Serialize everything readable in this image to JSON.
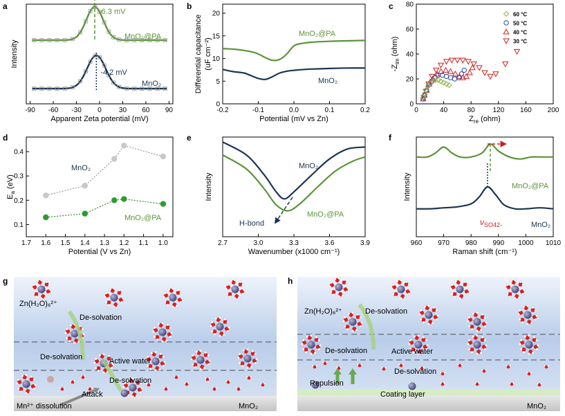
{
  "colors": {
    "green": "#5b9437",
    "navy": "#1b3553",
    "gray": "#9a9a9a",
    "dkgreen": "#2e8b2e",
    "red": "#d11f1f",
    "bluebg": "#c6d6ee",
    "axis": "#000000"
  },
  "chart_data": [
    {
      "panel": "a",
      "type": "line",
      "xlabel": "Apparent Zeta potential (mV)",
      "ylabel": "Intensity",
      "xlim": [
        -95,
        95
      ],
      "xticks": [
        -90,
        -60,
        -30,
        0,
        30,
        60,
        90
      ],
      "series": [
        {
          "name": "MnO2@PA",
          "peak": -6.3,
          "peak_label": "-6.3 mV",
          "points_x": [
            -85,
            -75,
            -65,
            -55,
            -45,
            -35,
            -25,
            -18,
            -12,
            -6,
            0,
            6,
            12,
            18,
            25,
            35,
            45,
            55,
            65,
            75,
            85
          ]
        },
        {
          "name": "MnO2",
          "peak": -4.2,
          "peak_label": "-4.2 mV",
          "points_x": [
            -85,
            -75,
            -65,
            -55,
            -45,
            -35,
            -25,
            -18,
            -12,
            -6,
            0,
            6,
            12,
            18,
            25,
            35,
            45,
            55,
            65,
            75,
            85
          ]
        }
      ],
      "labels": {
        "a": "MnO₂@PA",
        "b": "MnO₂"
      }
    },
    {
      "panel": "b",
      "type": "line",
      "xlabel": "Potential (mV vs Zn)",
      "ylabel": "Differential capacitance",
      "ylabel2": "(uF cm⁻²)",
      "xlim": [
        -0.2,
        0.2
      ],
      "ylim": [
        0,
        22
      ],
      "xticks": [
        "-0.2",
        "-0.1",
        "0.0",
        "0.1",
        "0.2"
      ],
      "yticks": [
        0,
        5,
        10,
        15,
        20
      ],
      "series": [
        {
          "name": "MnO2@PA",
          "x": [
            -0.2,
            -0.16,
            -0.12,
            -0.1,
            -0.08,
            -0.06,
            -0.04,
            -0.02,
            0,
            0.02,
            0.05,
            0.1,
            0.15,
            0.2
          ],
          "y": [
            12.2,
            12.0,
            11.5,
            11.0,
            10.2,
            9.6,
            9.8,
            11.0,
            12.8,
            13.3,
            13.6,
            13.8,
            13.9,
            14.0
          ]
        },
        {
          "name": "MnO2",
          "x": [
            -0.2,
            -0.17,
            -0.14,
            -0.12,
            -0.1,
            -0.08,
            -0.06,
            -0.04,
            -0.02,
            0,
            0.03,
            0.06,
            0.1,
            0.15,
            0.2
          ],
          "y": [
            7.6,
            7.1,
            6.8,
            6.2,
            5.6,
            5.4,
            6.0,
            6.8,
            7.2,
            7.4,
            7.6,
            7.7,
            7.8,
            7.9,
            7.9
          ]
        }
      ],
      "labels": {
        "a": "MnO₂@PA",
        "b": "MnO₂"
      }
    },
    {
      "panel": "c",
      "type": "scatter",
      "xlabel": "Z",
      "xlabel_sub": "re",
      "xlabel_unit": " (ohm)",
      "ylabel": "-Z",
      "ylabel_sub": "im",
      "ylabel_unit": " (ohm)",
      "xlim": [
        0,
        200
      ],
      "ylim": [
        0,
        80
      ],
      "xticks": [
        0,
        40,
        80,
        120,
        160,
        200
      ],
      "yticks": [
        0,
        20,
        40,
        60,
        80
      ],
      "legend": [
        "60 °C",
        "50 °C",
        "40 °C",
        "30 °C"
      ],
      "series": [
        {
          "name": "60 °C",
          "x": [
            10,
            12,
            14,
            17,
            20,
            24,
            28,
            32,
            36,
            40,
            44,
            48
          ],
          "y": [
            5,
            8,
            11,
            14,
            16,
            18,
            19,
            19,
            18,
            17,
            16,
            15
          ]
        },
        {
          "name": "50 °C",
          "x": [
            10,
            12,
            15,
            18,
            22,
            27,
            32,
            38,
            44,
            50,
            56,
            62,
            66,
            70
          ],
          "y": [
            4,
            7,
            11,
            15,
            18,
            21,
            23,
            23,
            22,
            21,
            20,
            21,
            24,
            27
          ]
        },
        {
          "name": "40 °C",
          "x": [
            10,
            12,
            15,
            19,
            24,
            30,
            36,
            43,
            50,
            57,
            63,
            68,
            73,
            78,
            82
          ],
          "y": [
            4,
            7,
            11,
            16,
            20,
            24,
            26,
            27,
            26,
            24,
            22,
            21,
            22,
            25,
            29
          ]
        },
        {
          "name": "30 °C",
          "x": [
            11,
            14,
            18,
            23,
            29,
            36,
            44,
            52,
            60,
            68,
            76,
            84,
            92,
            100,
            108,
            116,
            130,
            147
          ],
          "y": [
            5,
            10,
            16,
            22,
            27,
            31,
            34,
            35,
            35,
            35,
            34,
            32,
            29,
            25,
            22,
            24,
            32,
            42
          ]
        }
      ]
    },
    {
      "panel": "d",
      "type": "line",
      "xlabel": "Potential (V vs Zn)",
      "ylabel": "E",
      "ylabel_sub": "a",
      "ylabel_unit": " (eV)",
      "xlim": [
        1.7,
        0.95
      ],
      "ylim": [
        0.05,
        0.46
      ],
      "xticks": [
        "1.7",
        "1.6",
        "1.5",
        "1.4",
        "1.3",
        "1.2",
        "1.1",
        "1.0"
      ],
      "yticks": [
        "0.1",
        "0.2",
        "0.3",
        "0.4"
      ],
      "series": [
        {
          "name": "MnO2",
          "x": [
            1.6,
            1.4,
            1.25,
            1.2,
            1.0
          ],
          "y": [
            0.22,
            0.26,
            0.37,
            0.425,
            0.38
          ]
        },
        {
          "name": "MnO2@PA",
          "x": [
            1.6,
            1.4,
            1.25,
            1.2,
            1.0
          ],
          "y": [
            0.13,
            0.145,
            0.2,
            0.205,
            0.185
          ]
        }
      ],
      "labels": {
        "a": "MnO₂",
        "b": "MnO₂@PA"
      }
    },
    {
      "panel": "e",
      "type": "line",
      "xlabel": "Wavenumber (x1000 cm⁻¹)",
      "ylabel": "Intensity",
      "xlim": [
        2.7,
        3.9
      ],
      "xticks": [
        "2.7",
        "3.0",
        "3.3",
        "3.6",
        "3.9"
      ],
      "annotation": "H-bond",
      "labels": {
        "a": "MnO₂",
        "b": "MnO₂@PA"
      },
      "series": [
        {
          "name": "MnO2",
          "x": [
            2.7,
            2.9,
            3.05,
            3.15,
            3.22,
            3.3,
            3.45,
            3.6,
            3.75,
            3.9
          ],
          "y": [
            0.95,
            0.82,
            0.62,
            0.45,
            0.38,
            0.45,
            0.62,
            0.78,
            0.88,
            0.9
          ]
        },
        {
          "name": "MnO2@PA",
          "x": [
            2.7,
            2.9,
            3.05,
            3.15,
            3.25,
            3.35,
            3.5,
            3.65,
            3.8,
            3.9
          ],
          "y": [
            0.82,
            0.68,
            0.48,
            0.32,
            0.26,
            0.33,
            0.5,
            0.66,
            0.76,
            0.8
          ]
        }
      ]
    },
    {
      "panel": "f",
      "type": "line",
      "xlabel": "Raman shift (cm⁻¹)",
      "ylabel": "Intensity",
      "xlim": [
        960,
        1010
      ],
      "xticks": [
        960,
        970,
        980,
        990,
        1000,
        1010
      ],
      "annotation": "ν",
      "annotation_sub": "SO42-",
      "labels": {
        "a": "MnO₂@PA",
        "b": "MnO₂"
      },
      "series": [
        {
          "name": "MnO2@PA",
          "x": [
            960,
            964,
            967,
            970,
            973,
            976,
            980,
            984,
            987,
            990,
            994,
            998,
            1002,
            1006,
            1010
          ],
          "y": [
            0.8,
            0.8,
            0.84,
            0.9,
            0.84,
            0.8,
            0.8,
            0.84,
            0.93,
            0.86,
            0.8,
            0.78,
            0.8,
            0.8,
            0.8
          ]
        },
        {
          "name": "MnO2",
          "x": [
            960,
            965,
            970,
            975,
            980,
            983,
            986,
            989,
            992,
            996,
            1000,
            1005,
            1010
          ],
          "y": [
            0.28,
            0.28,
            0.29,
            0.3,
            0.33,
            0.4,
            0.5,
            0.42,
            0.32,
            0.28,
            0.28,
            0.29,
            0.28
          ]
        }
      ]
    }
  ],
  "panel_letters": [
    "a",
    "b",
    "c",
    "d",
    "e",
    "f",
    "g",
    "h"
  ],
  "schematic_g": {
    "species": "Zn(H₂O)₆²⁺",
    "desolv1": "De-solvation",
    "desolv2": "De-solvation",
    "desolv3": "De-solvation",
    "active_water": "Active water",
    "attack": "Attack",
    "mn_dissolution": "Mn²⁺ dissolution",
    "substrate": "MnO₂"
  },
  "schematic_h": {
    "species": "Zn(H₂O)₆²⁺",
    "desolv1": "De-solvation",
    "desolv2": "De-solvation",
    "desolv3": "De-solvation",
    "active_water": "Active water",
    "repulsion": "Repulsion",
    "coating": "Coating layer",
    "substrate": "MnO₂"
  }
}
